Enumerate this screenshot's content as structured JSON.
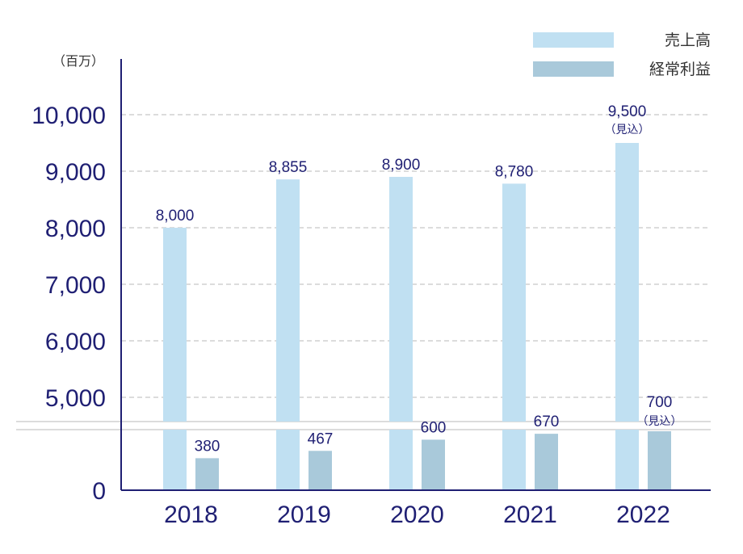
{
  "chart_data": {
    "type": "bar",
    "unit_label": "（百万）",
    "categories": [
      "2018",
      "2019",
      "2020",
      "2021",
      "2022"
    ],
    "series": [
      {
        "name": "売上高",
        "color": "#c0e0f2",
        "values": [
          8000,
          8855,
          8900,
          8780,
          9500
        ],
        "labels": [
          "8,000",
          "8,855",
          "8,900",
          "8,780",
          "9,500"
        ],
        "notes": [
          "",
          "",
          "",
          "",
          "（見込）"
        ]
      },
      {
        "name": "経常利益",
        "color": "#a9c9da",
        "values": [
          380,
          467,
          600,
          670,
          700
        ],
        "labels": [
          "380",
          "467",
          "600",
          "670",
          "700"
        ],
        "notes": [
          "",
          "",
          "",
          "",
          "（見込）"
        ]
      }
    ],
    "y_ticks": [
      {
        "value": 0,
        "label": "0"
      },
      {
        "value": 5000,
        "label": "5,000"
      },
      {
        "value": 6000,
        "label": "6,000"
      },
      {
        "value": 7000,
        "label": "7,000"
      },
      {
        "value": 8000,
        "label": "8,000"
      },
      {
        "value": 9000,
        "label": "9,000"
      },
      {
        "value": 10000,
        "label": "10,000"
      }
    ],
    "broken_axis": true,
    "lower_range": [
      0,
      700
    ],
    "upper_range": [
      5000,
      10000
    ],
    "grid": "dashed",
    "legend_position": "top-right",
    "axis_color": "#1f1f73"
  }
}
